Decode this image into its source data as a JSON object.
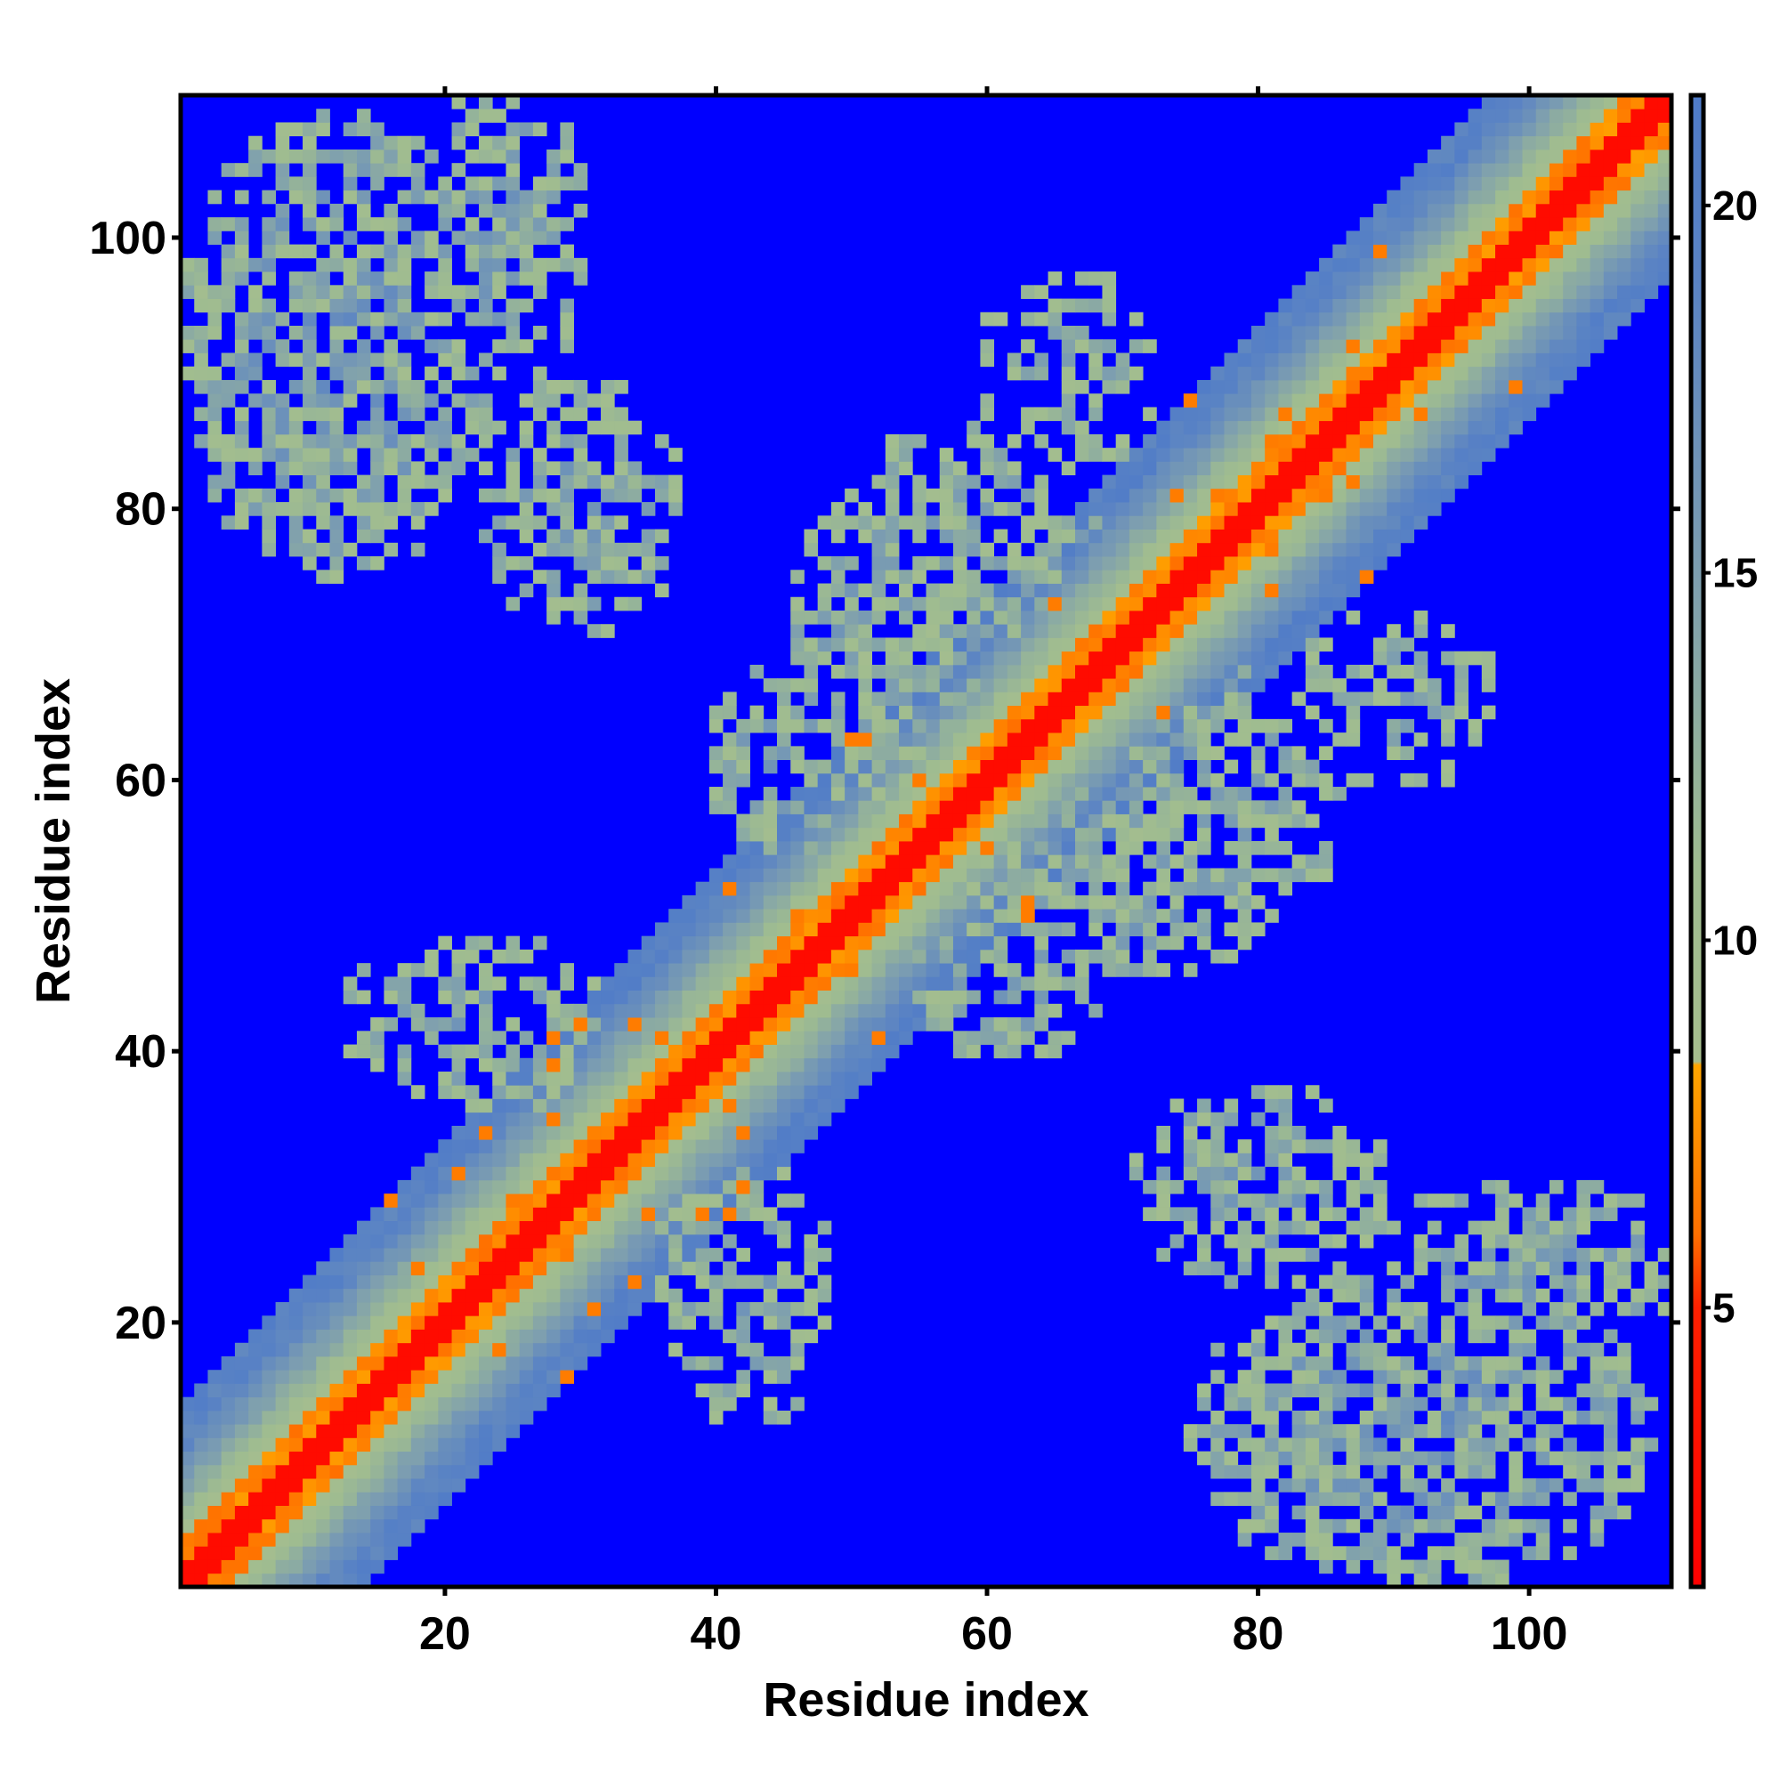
{
  "chart_data": {
    "type": "heatmap",
    "title": "",
    "xlabel": "Residue index",
    "ylabel": "Residue index",
    "n_residues": 110,
    "xlim": [
      0.5,
      110.5
    ],
    "ylim": [
      0.5,
      110.5
    ],
    "x_ticks": [
      20,
      40,
      60,
      80,
      100
    ],
    "y_ticks": [
      20,
      40,
      60,
      80,
      100
    ],
    "colorbar": {
      "ticks": [
        5,
        10,
        15,
        20
      ],
      "range": [
        1.2,
        21.5
      ],
      "stops": [
        {
          "value": 1.2,
          "color": "#ff0000"
        },
        {
          "value": 5.0,
          "color": "#ff2000"
        },
        {
          "value": 6.0,
          "color": "#ff7000"
        },
        {
          "value": 8.3,
          "color": "#ffa500"
        },
        {
          "value": 8.35,
          "color": "#a6be8e"
        },
        {
          "value": 11.0,
          "color": "#9fbc90"
        },
        {
          "value": 15.0,
          "color": "#7d9eb0"
        },
        {
          "value": 19.0,
          "color": "#5a83c4"
        },
        {
          "value": 21.5,
          "color": "#4f7bc8"
        }
      ]
    },
    "background_color": "#0000ff",
    "description_model": {
      "diagonal_band": "distance grows with |i-j|: red for |i-j|<=1, orange up to ~3, greenish to ~9, blue-grey beyond",
      "contact_regions": [
        {
          "i": [
            1,
            30
          ],
          "j": [
            78,
            110
          ],
          "label": "anti-parallel contacts top-left"
        },
        {
          "i": [
            46,
            72
          ],
          "j": [
            55,
            100
          ],
          "label": "central cross region"
        },
        {
          "i": [
            10,
            40
          ],
          "j": [
            10,
            50
          ],
          "label": "lower-left fringe"
        }
      ]
    }
  }
}
